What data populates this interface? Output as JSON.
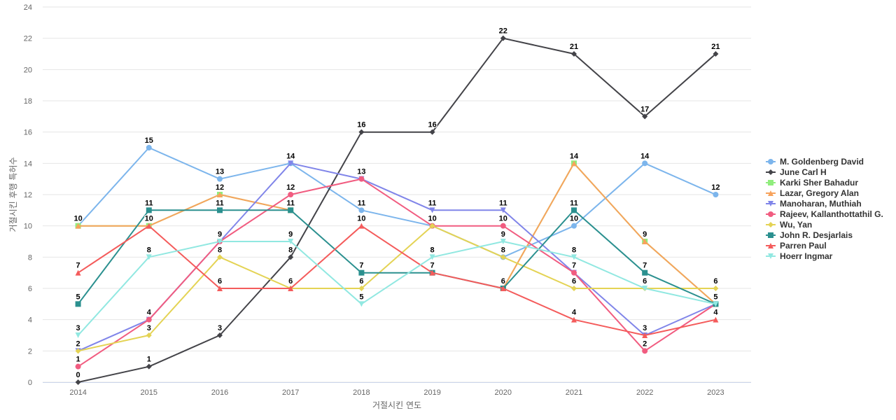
{
  "chart_data": {
    "type": "line",
    "xlabel": "거절시킨 연도",
    "ylabel": "거절시킨 후행 특허수",
    "ylim": [
      0,
      24
    ],
    "y_ticks": [
      0,
      2,
      4,
      6,
      8,
      10,
      12,
      14,
      16,
      18,
      20,
      22,
      24
    ],
    "grid": "horizontal",
    "legend_position": "right",
    "categories": [
      "2014",
      "2015",
      "2016",
      "2017",
      "2018",
      "2019",
      "2020",
      "2021",
      "2022",
      "2023"
    ],
    "series": [
      {
        "name": "M. Goldenberg David",
        "color": "#7cb5ec",
        "marker": "circle",
        "values": [
          10,
          15,
          13,
          14,
          11,
          10,
          8,
          10,
          14,
          12
        ]
      },
      {
        "name": "June Carl H",
        "color": "#434348",
        "marker": "diamond",
        "values": [
          0,
          1,
          3,
          8,
          16,
          16,
          22,
          21,
          17,
          21
        ]
      },
      {
        "name": "Karki Sher Bahadur",
        "color": "#90ed7d",
        "marker": "square",
        "values": [
          10,
          10,
          12,
          11,
          null,
          null,
          6,
          14,
          9,
          5
        ]
      },
      {
        "name": "Lazar, Gregory Alan",
        "color": "#f7a35c",
        "marker": "triangle",
        "values": [
          10,
          10,
          12,
          11,
          null,
          null,
          6,
          14,
          9,
          5
        ]
      },
      {
        "name": "Manoharan, Muthiah",
        "color": "#8085e9",
        "marker": "triangle-down",
        "values": [
          2,
          4,
          9,
          14,
          13,
          11,
          11,
          7,
          3,
          5
        ]
      },
      {
        "name": "Rajeev, Kallanthottathil G.",
        "color": "#f15c80",
        "marker": "circle",
        "values": [
          1,
          4,
          9,
          12,
          13,
          10,
          10,
          7,
          2,
          5
        ]
      },
      {
        "name": "Wu, Yan",
        "color": "#e4d354",
        "marker": "diamond",
        "values": [
          2,
          3,
          8,
          6,
          6,
          10,
          8,
          6,
          6,
          6
        ]
      },
      {
        "name": "John R. Desjarlais",
        "color": "#2b908f",
        "marker": "square",
        "values": [
          5,
          11,
          11,
          11,
          7,
          7,
          6,
          11,
          7,
          5
        ]
      },
      {
        "name": "Parren Paul",
        "color": "#f45b5b",
        "marker": "triangle",
        "values": [
          7,
          10,
          6,
          6,
          10,
          7,
          6,
          4,
          3,
          4
        ]
      },
      {
        "name": "Hoerr Ingmar",
        "color": "#91e8e1",
        "marker": "triangle-down",
        "values": [
          3,
          8,
          9,
          9,
          5,
          8,
          9,
          8,
          6,
          5
        ]
      }
    ],
    "data_labels": [
      {
        "x": "2014",
        "y": 10,
        "text": "10"
      },
      {
        "x": "2014",
        "y": 7,
        "text": "7"
      },
      {
        "x": "2014",
        "y": 5,
        "text": "5"
      },
      {
        "x": "2014",
        "y": 3,
        "text": "3"
      },
      {
        "x": "2014",
        "y": 2,
        "text": "2"
      },
      {
        "x": "2014",
        "y": 1,
        "text": "1"
      },
      {
        "x": "2014",
        "y": 0,
        "text": "0"
      },
      {
        "x": "2015",
        "y": 15,
        "text": "15"
      },
      {
        "x": "2015",
        "y": 11,
        "text": "11"
      },
      {
        "x": "2015",
        "y": 10,
        "text": "10"
      },
      {
        "x": "2015",
        "y": 8,
        "text": "8"
      },
      {
        "x": "2015",
        "y": 4,
        "text": "4"
      },
      {
        "x": "2015",
        "y": 3,
        "text": "3"
      },
      {
        "x": "2015",
        "y": 1,
        "text": "1"
      },
      {
        "x": "2016",
        "y": 13,
        "text": "13"
      },
      {
        "x": "2016",
        "y": 12,
        "text": "12"
      },
      {
        "x": "2016",
        "y": 11,
        "text": "11"
      },
      {
        "x": "2016",
        "y": 9,
        "text": "9"
      },
      {
        "x": "2016",
        "y": 8,
        "text": "8"
      },
      {
        "x": "2016",
        "y": 6,
        "text": "6"
      },
      {
        "x": "2016",
        "y": 3,
        "text": "3"
      },
      {
        "x": "2017",
        "y": 14,
        "text": "14"
      },
      {
        "x": "2017",
        "y": 12,
        "text": "12"
      },
      {
        "x": "2017",
        "y": 11,
        "text": "11"
      },
      {
        "x": "2017",
        "y": 9,
        "text": "9"
      },
      {
        "x": "2017",
        "y": 8,
        "text": "8"
      },
      {
        "x": "2017",
        "y": 6,
        "text": "6"
      },
      {
        "x": "2018",
        "y": 16,
        "text": "16"
      },
      {
        "x": "2018",
        "y": 13,
        "text": "13"
      },
      {
        "x": "2018",
        "y": 11,
        "text": "11"
      },
      {
        "x": "2018",
        "y": 10,
        "text": "10"
      },
      {
        "x": "2018",
        "y": 7,
        "text": "7"
      },
      {
        "x": "2018",
        "y": 6,
        "text": "6"
      },
      {
        "x": "2018",
        "y": 5,
        "text": "5"
      },
      {
        "x": "2019",
        "y": 16,
        "text": "16"
      },
      {
        "x": "2019",
        "y": 11,
        "text": "11"
      },
      {
        "x": "2019",
        "y": 10,
        "text": "10"
      },
      {
        "x": "2019",
        "y": 8,
        "text": "8"
      },
      {
        "x": "2019",
        "y": 7,
        "text": "7"
      },
      {
        "x": "2020",
        "y": 22,
        "text": "22"
      },
      {
        "x": "2020",
        "y": 11,
        "text": "11"
      },
      {
        "x": "2020",
        "y": 10,
        "text": "10"
      },
      {
        "x": "2020",
        "y": 9,
        "text": "9"
      },
      {
        "x": "2020",
        "y": 8,
        "text": "8"
      },
      {
        "x": "2020",
        "y": 6,
        "text": "6"
      },
      {
        "x": "2021",
        "y": 21,
        "text": "21"
      },
      {
        "x": "2021",
        "y": 14,
        "text": "14"
      },
      {
        "x": "2021",
        "y": 11,
        "text": "11"
      },
      {
        "x": "2021",
        "y": 10,
        "text": "10"
      },
      {
        "x": "2021",
        "y": 8,
        "text": "8"
      },
      {
        "x": "2021",
        "y": 7,
        "text": "7"
      },
      {
        "x": "2021",
        "y": 6,
        "text": "6"
      },
      {
        "x": "2021",
        "y": 4,
        "text": "4"
      },
      {
        "x": "2022",
        "y": 17,
        "text": "17"
      },
      {
        "x": "2022",
        "y": 14,
        "text": "14"
      },
      {
        "x": "2022",
        "y": 9,
        "text": "9"
      },
      {
        "x": "2022",
        "y": 7,
        "text": "7"
      },
      {
        "x": "2022",
        "y": 6,
        "text": "6"
      },
      {
        "x": "2022",
        "y": 3,
        "text": "3"
      },
      {
        "x": "2022",
        "y": 2,
        "text": "2"
      },
      {
        "x": "2023",
        "y": 21,
        "text": "21"
      },
      {
        "x": "2023",
        "y": 12,
        "text": "12"
      },
      {
        "x": "2023",
        "y": 6,
        "text": "6"
      },
      {
        "x": "2023",
        "y": 5,
        "text": "5"
      },
      {
        "x": "2023",
        "y": 4,
        "text": "4"
      }
    ]
  }
}
